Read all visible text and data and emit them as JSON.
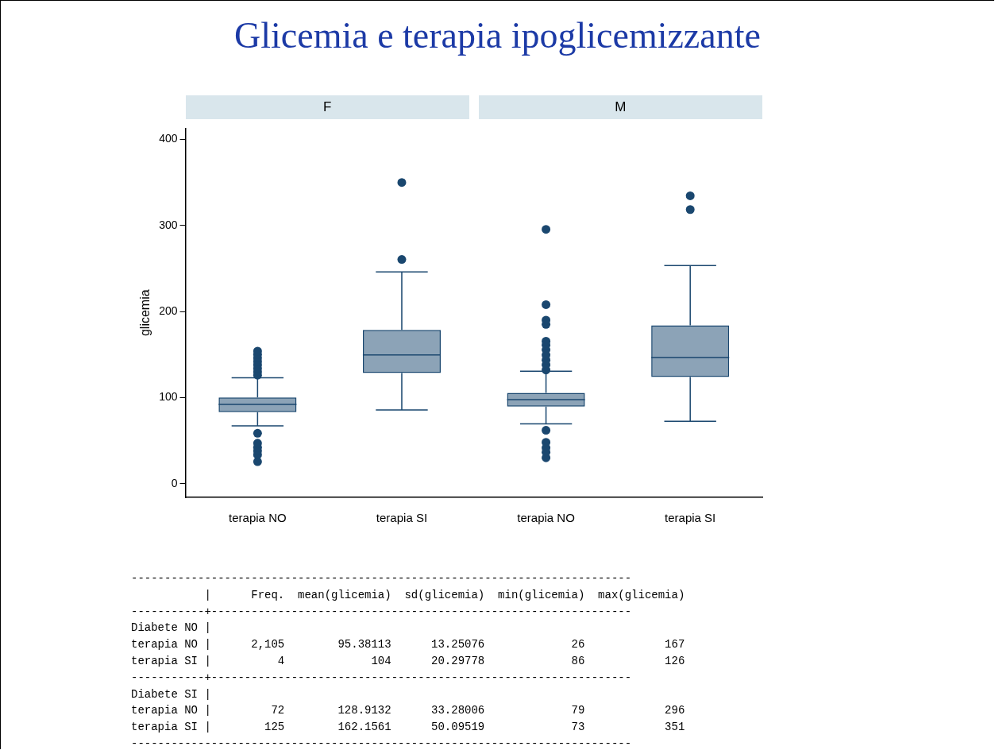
{
  "chart_data": [
    {
      "type": "box",
      "title": "Glicemia e terapia ipoglicemizzante",
      "ylabel": "glicemia",
      "annotations": [
        "F",
        "M"
      ],
      "categories": [
        "terapia NO",
        "terapia SI",
        "terapia NO",
        "terapia SI"
      ],
      "ylim": [
        -16,
        413
      ],
      "yticks": [
        0,
        100,
        200,
        300,
        400
      ],
      "legend": false,
      "series": [
        {
          "color": "#1a476f",
          "boxes": [
            {
              "low": 67,
              "q1": 83,
              "median": 92,
              "q3": 100,
              "high": 123,
              "outliers": [
                154,
                150,
                146,
                142,
                138,
                134,
                130,
                126,
                58.5,
                47,
                42,
                38,
                33.5,
                25.5
              ]
            },
            {
              "low": 85.5,
              "q1": 128.5,
              "median": 149.5,
              "q3": 178.5,
              "high": 246,
              "outliers": [
                260.5,
                350
              ]
            },
            {
              "low": 69.5,
              "q1": 89.5,
              "median": 97.5,
              "q3": 105.5,
              "high": 130.5,
              "outliers": [
                295.5,
                208,
                190,
                185,
                165.5,
                161,
                155.5,
                149.5,
                143.5,
                138,
                132,
                62,
                48,
                41.5,
                36.5,
                30
              ]
            },
            {
              "low": 72.5,
              "q1": 124,
              "median": 146.5,
              "q3": 184,
              "high": 253.5,
              "outliers": [
                318.5,
                334.5
              ]
            }
          ]
        }
      ]
    },
    {
      "type": "other",
      "annotations": [
        "---------------------------------------------------------------------------",
        "           |      Freq.  mean(glicemia)  sd(glicemia)  min(glicemia)  max(glicemia)",
        "-----------+---------------------------------------------------------------",
        "Diabete NO |",
        "terapia NO |      2,105        95.38113      13.25076             26            167",
        "terapia SI |          4             104      20.29778             86            126",
        "-----------+---------------------------------------------------------------",
        "Diabete SI |",
        "terapia NO |         72        128.9132      33.28006             79            296",
        "terapia SI |        125        162.1561      50.09519             73            351",
        "---------------------------------------------------------------------------"
      ]
    }
  ]
}
